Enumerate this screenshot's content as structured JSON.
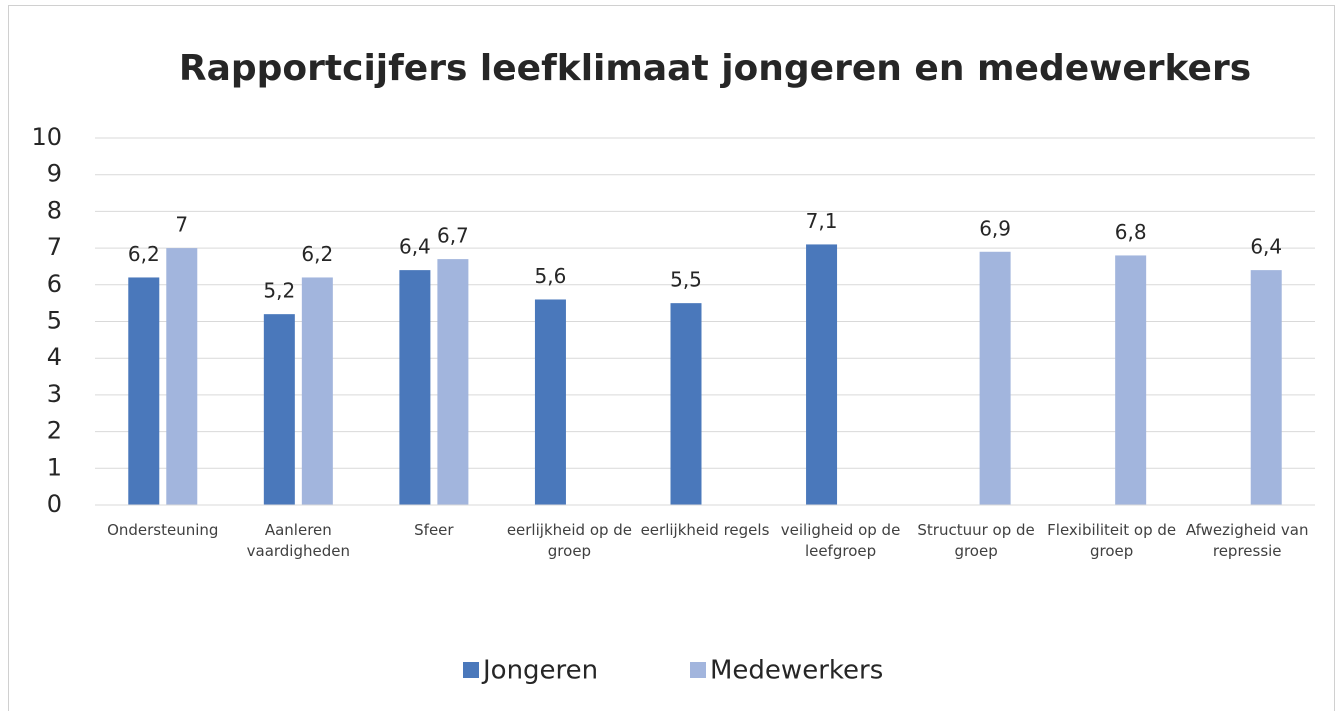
{
  "chart_data": {
    "type": "bar",
    "title": "Rapportcijfers leefklimaat jongeren en medewerkers",
    "categories": [
      "Ondersteuning",
      "Aanleren vaardigheden",
      "Sfeer",
      "eerlijkheid op de groep",
      "eerlijkheid regels",
      "veiligheid op de leefgroep",
      "Structuur op de groep",
      "Flexibiliteit op de groep",
      "Afwezigheid van repressie"
    ],
    "series": [
      {
        "name": "Jongeren",
        "color": "#4a78bb",
        "values": [
          6.2,
          5.2,
          6.4,
          5.6,
          5.5,
          7.1,
          null,
          null,
          null
        ],
        "value_labels": [
          "6,2",
          "5,2",
          "6,4",
          "5,6",
          "5,5",
          "7,1",
          null,
          null,
          null
        ]
      },
      {
        "name": "Medewerkers",
        "color": "#a2b5dd",
        "values": [
          7,
          6.2,
          6.7,
          null,
          null,
          null,
          6.9,
          6.8,
          6.4
        ],
        "value_labels": [
          "7",
          "6,2",
          "6,7",
          null,
          null,
          null,
          "6,9",
          "6,8",
          "6,4"
        ]
      }
    ],
    "ylim": [
      0,
      10
    ],
    "yticks": [
      0,
      1,
      2,
      3,
      4,
      5,
      6,
      7,
      8,
      9,
      10
    ],
    "grid": true,
    "legend": "bottom"
  }
}
